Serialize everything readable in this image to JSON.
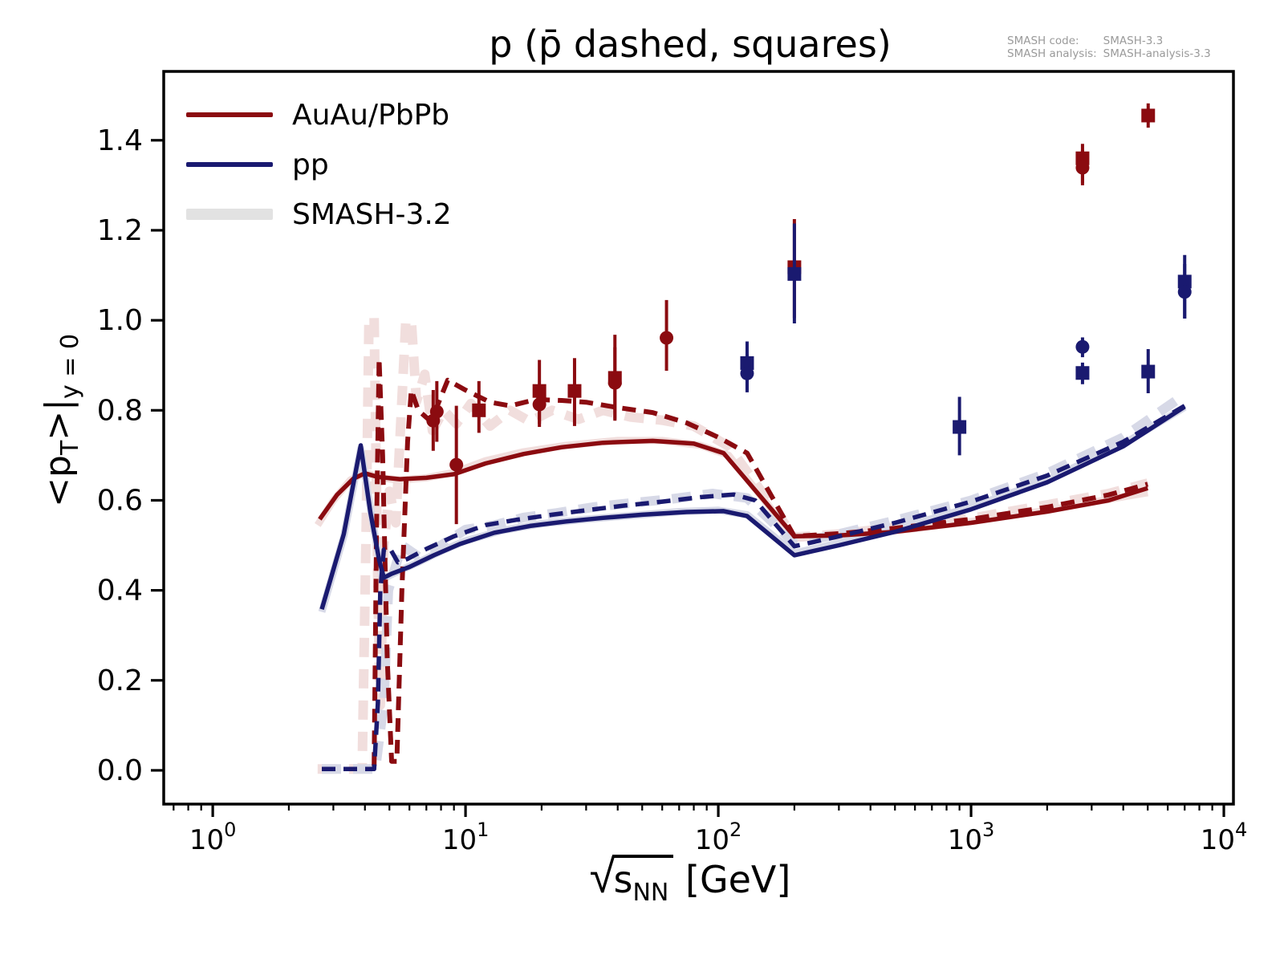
{
  "title": "p (p̄ dashed, squares)",
  "annotation": {
    "code_label": "SMASH code:",
    "code_value": "SMASH-3.3",
    "analysis_label": "SMASH analysis:",
    "analysis_value": "SMASH-analysis-3.3"
  },
  "legend": {
    "items": [
      {
        "label": "AuAu/PbPb",
        "color": "#8b0b10",
        "style": "thin"
      },
      {
        "label": "pp",
        "color": "#1a1a70",
        "style": "thin"
      },
      {
        "label": "SMASH-3.2",
        "color": "#e2e2e2",
        "style": "thick"
      }
    ]
  },
  "ylabel": {
    "pre": "<p",
    "sub1": "T",
    "mid": ">|",
    "sub2": "y = 0"
  },
  "xlabel": {
    "radical": "√",
    "s": "s",
    "sub": "NN",
    "unit": " [GeV]"
  },
  "chart_data": {
    "type": "line",
    "x_scale": "log",
    "x_range_log10": [
      -0.194,
      4.038
    ],
    "y_range": [
      -0.075,
      1.553
    ],
    "x_ticks": [
      {
        "base": "10",
        "exp": "0",
        "value": 1
      },
      {
        "base": "10",
        "exp": "1",
        "value": 10
      },
      {
        "base": "10",
        "exp": "2",
        "value": 100
      },
      {
        "base": "10",
        "exp": "3",
        "value": 1000
      },
      {
        "base": "10",
        "exp": "4",
        "value": 10000
      }
    ],
    "y_ticks": [
      {
        "label": "0.0",
        "value": 0.0
      },
      {
        "label": "0.2",
        "value": 0.2
      },
      {
        "label": "0.4",
        "value": 0.4
      },
      {
        "label": "0.6",
        "value": 0.6
      },
      {
        "label": "0.8",
        "value": 0.8
      },
      {
        "label": "1.0",
        "value": 1.0
      },
      {
        "label": "1.2",
        "value": 1.2
      },
      {
        "label": "1.4",
        "value": 1.4
      }
    ],
    "colors": {
      "auau": "#8b0b10",
      "pp": "#1a1a70",
      "smash32_auau": "#f1dedd",
      "smash32_pp": "#d7d9e7"
    },
    "series": [
      {
        "name": "smash32-auau-p",
        "color": "#f1dedd",
        "width": 9,
        "dash": null,
        "pts": [
          [
            2.6,
            0.545
          ],
          [
            3.0,
            0.6
          ],
          [
            3.5,
            0.645
          ],
          [
            4.0,
            0.662
          ],
          [
            4.6,
            0.65
          ],
          [
            5.5,
            0.645
          ],
          [
            7,
            0.65
          ],
          [
            9,
            0.662
          ],
          [
            12,
            0.688
          ],
          [
            17,
            0.708
          ],
          [
            25,
            0.722
          ],
          [
            40,
            0.733
          ],
          [
            60,
            0.733
          ],
          [
            85,
            0.722
          ],
          [
            110,
            0.7
          ],
          [
            200,
            0.516
          ],
          [
            300,
            0.52
          ],
          [
            500,
            0.532
          ],
          [
            1000,
            0.553
          ],
          [
            2000,
            0.578
          ],
          [
            3500,
            0.602
          ],
          [
            5000,
            0.617
          ]
        ]
      },
      {
        "name": "smash32-auau-pbar",
        "color": "#f1dedd",
        "width": 12,
        "dash": [
          24,
          15
        ],
        "pts": [
          [
            2.6,
            0.003
          ],
          [
            3.9,
            0.003
          ],
          [
            4.05,
            0.55
          ],
          [
            4.15,
            1.005
          ],
          [
            4.35,
            1.005
          ],
          [
            4.5,
            0.4
          ],
          [
            4.6,
            0.145
          ],
          [
            4.75,
            0.5
          ],
          [
            5.0,
            0.62
          ],
          [
            5.3,
            0.55
          ],
          [
            5.8,
            0.995
          ],
          [
            6.1,
            1.0
          ],
          [
            6.4,
            0.82
          ],
          [
            6.9,
            0.88
          ],
          [
            7.4,
            0.755
          ],
          [
            8.2,
            0.8
          ],
          [
            9.2,
            0.77
          ],
          [
            10.5,
            0.815
          ],
          [
            12.5,
            0.765
          ],
          [
            15,
            0.8
          ],
          [
            18,
            0.775
          ],
          [
            22,
            0.8
          ],
          [
            28,
            0.78
          ],
          [
            35,
            0.8
          ],
          [
            45,
            0.785
          ],
          [
            60,
            0.778
          ],
          [
            80,
            0.765
          ],
          [
            110,
            0.72
          ],
          [
            200,
            0.518
          ],
          [
            300,
            0.525
          ],
          [
            500,
            0.54
          ],
          [
            1000,
            0.56
          ],
          [
            2000,
            0.59
          ],
          [
            3500,
            0.615
          ],
          [
            5000,
            0.638
          ]
        ]
      },
      {
        "name": "smash32-pp-p",
        "color": "#d7d9e7",
        "width": 9,
        "dash": null,
        "pts": [
          [
            2.7,
            0.352
          ],
          [
            3.3,
            0.52
          ],
          [
            3.85,
            0.715
          ],
          [
            4.3,
            0.55
          ],
          [
            4.7,
            0.425
          ],
          [
            5.3,
            0.44
          ],
          [
            6.5,
            0.462
          ],
          [
            8,
            0.487
          ],
          [
            10,
            0.51
          ],
          [
            14,
            0.533
          ],
          [
            20,
            0.548
          ],
          [
            30,
            0.558
          ],
          [
            45,
            0.566
          ],
          [
            70,
            0.575
          ],
          [
            100,
            0.578
          ],
          [
            130,
            0.568
          ],
          [
            200,
            0.483
          ],
          [
            300,
            0.505
          ],
          [
            500,
            0.535
          ],
          [
            1000,
            0.585
          ],
          [
            2000,
            0.645
          ],
          [
            4000,
            0.725
          ],
          [
            7000,
            0.807
          ]
        ]
      },
      {
        "name": "smash32-pp-pbar",
        "color": "#d7d9e7",
        "width": 12,
        "dash": [
          24,
          15
        ],
        "pts": [
          [
            2.7,
            0.003
          ],
          [
            4.4,
            0.003
          ],
          [
            4.75,
            0.15
          ],
          [
            4.95,
            0.4
          ],
          [
            5.6,
            0.5
          ],
          [
            6.5,
            0.475
          ],
          [
            8,
            0.5
          ],
          [
            10,
            0.535
          ],
          [
            13,
            0.545
          ],
          [
            17,
            0.562
          ],
          [
            23,
            0.572
          ],
          [
            32,
            0.585
          ],
          [
            45,
            0.594
          ],
          [
            65,
            0.603
          ],
          [
            95,
            0.615
          ],
          [
            130,
            0.605
          ],
          [
            200,
            0.505
          ],
          [
            300,
            0.525
          ],
          [
            500,
            0.555
          ],
          [
            1000,
            0.6
          ],
          [
            2000,
            0.66
          ],
          [
            4000,
            0.74
          ],
          [
            7000,
            0.835
          ]
        ]
      },
      {
        "name": "auau-p",
        "color": "#8b0b10",
        "width": 5.5,
        "dash": null,
        "pts": [
          [
            2.65,
            0.558
          ],
          [
            3.1,
            0.612
          ],
          [
            3.6,
            0.648
          ],
          [
            4.0,
            0.66
          ],
          [
            4.5,
            0.652
          ],
          [
            5.5,
            0.647
          ],
          [
            7,
            0.65
          ],
          [
            9,
            0.658
          ],
          [
            12,
            0.682
          ],
          [
            17,
            0.703
          ],
          [
            24,
            0.718
          ],
          [
            35,
            0.728
          ],
          [
            55,
            0.732
          ],
          [
            80,
            0.726
          ],
          [
            105,
            0.705
          ],
          [
            200,
            0.52
          ],
          [
            300,
            0.522
          ],
          [
            500,
            0.53
          ],
          [
            1000,
            0.55
          ],
          [
            2000,
            0.575
          ],
          [
            3500,
            0.6
          ],
          [
            5000,
            0.627
          ]
        ]
      },
      {
        "name": "auau-pbar",
        "color": "#8b0b10",
        "width": 6,
        "dash": [
          17,
          10
        ],
        "pts": [
          [
            4.35,
            0.01
          ],
          [
            4.45,
            0.55
          ],
          [
            4.55,
            0.915
          ],
          [
            4.7,
            0.7
          ],
          [
            4.9,
            0.25
          ],
          [
            5.1,
            0.02
          ],
          [
            5.35,
            0.02
          ],
          [
            5.6,
            0.4
          ],
          [
            5.9,
            0.73
          ],
          [
            6.1,
            0.845
          ],
          [
            6.5,
            0.8
          ],
          [
            7.3,
            0.775
          ],
          [
            8.5,
            0.867
          ],
          [
            10,
            0.845
          ],
          [
            12.5,
            0.818
          ],
          [
            15,
            0.81
          ],
          [
            19,
            0.824
          ],
          [
            24,
            0.822
          ],
          [
            30,
            0.818
          ],
          [
            40,
            0.806
          ],
          [
            55,
            0.795
          ],
          [
            75,
            0.772
          ],
          [
            100,
            0.74
          ],
          [
            130,
            0.705
          ],
          [
            200,
            0.52
          ],
          [
            300,
            0.526
          ],
          [
            500,
            0.538
          ],
          [
            1000,
            0.558
          ],
          [
            2000,
            0.585
          ],
          [
            3500,
            0.612
          ],
          [
            5000,
            0.636
          ]
        ]
      },
      {
        "name": "pp-p",
        "color": "#1a1a70",
        "width": 5.5,
        "dash": null,
        "pts": [
          [
            2.7,
            0.358
          ],
          [
            3.3,
            0.525
          ],
          [
            3.85,
            0.722
          ],
          [
            4.2,
            0.575
          ],
          [
            4.55,
            0.468
          ],
          [
            4.75,
            0.428
          ],
          [
            5.1,
            0.437
          ],
          [
            6,
            0.452
          ],
          [
            7.5,
            0.478
          ],
          [
            9.5,
            0.503
          ],
          [
            13,
            0.528
          ],
          [
            18,
            0.543
          ],
          [
            25,
            0.553
          ],
          [
            35,
            0.561
          ],
          [
            50,
            0.568
          ],
          [
            75,
            0.574
          ],
          [
            105,
            0.576
          ],
          [
            130,
            0.565
          ],
          [
            200,
            0.478
          ],
          [
            300,
            0.5
          ],
          [
            500,
            0.53
          ],
          [
            1000,
            0.58
          ],
          [
            2000,
            0.64
          ],
          [
            4000,
            0.72
          ],
          [
            7000,
            0.808
          ]
        ]
      },
      {
        "name": "pp-pbar",
        "color": "#1a1a70",
        "width": 5.5,
        "dash": [
          17,
          10
        ],
        "pts": [
          [
            2.7,
            0.003
          ],
          [
            4.35,
            0.003
          ],
          [
            4.5,
            0.15
          ],
          [
            4.6,
            0.4
          ],
          [
            4.75,
            0.49
          ],
          [
            5.0,
            0.495
          ],
          [
            5.4,
            0.462
          ],
          [
            5.9,
            0.47
          ],
          [
            7,
            0.492
          ],
          [
            9,
            0.52
          ],
          [
            12,
            0.545
          ],
          [
            16,
            0.557
          ],
          [
            22,
            0.568
          ],
          [
            30,
            0.578
          ],
          [
            42,
            0.588
          ],
          [
            60,
            0.597
          ],
          [
            85,
            0.607
          ],
          [
            115,
            0.613
          ],
          [
            140,
            0.6
          ],
          [
            200,
            0.498
          ],
          [
            300,
            0.52
          ],
          [
            500,
            0.55
          ],
          [
            1000,
            0.597
          ],
          [
            2000,
            0.655
          ],
          [
            4000,
            0.73
          ],
          [
            7000,
            0.81
          ]
        ]
      }
    ],
    "point_series": [
      {
        "name": "auau-pbar-data",
        "color": "#8b0b10",
        "marker": "square",
        "points": [
          [
            11.3,
            0.8,
            0.75,
            0.865
          ],
          [
            19.6,
            0.843,
            0.763,
            0.912
          ],
          [
            27,
            0.843,
            0.765,
            0.916
          ],
          [
            39,
            0.872,
            0.777,
            0.968
          ],
          [
            200,
            1.118,
            1.005,
            1.225
          ],
          [
            2760,
            1.36,
            1.305,
            1.392
          ],
          [
            5020,
            1.455,
            1.428,
            1.482
          ]
        ]
      },
      {
        "name": "auau-p-data",
        "color": "#8b0b10",
        "marker": "circle",
        "points": [
          [
            7.45,
            0.777,
            0.71,
            0.845
          ],
          [
            7.7,
            0.797,
            0.73,
            0.865
          ],
          [
            9.2,
            0.679,
            0.547,
            0.81
          ],
          [
            19.6,
            0.813,
            0.77,
            0.856
          ],
          [
            39,
            0.861,
            0.78,
            0.94
          ],
          [
            62.4,
            0.961,
            0.888,
            1.045
          ],
          [
            2760,
            1.339,
            1.3,
            1.378
          ]
        ]
      },
      {
        "name": "pp-pbar-data",
        "color": "#1a1a70",
        "marker": "square",
        "points": [
          [
            130,
            0.905,
            0.843,
            0.953
          ],
          [
            200,
            1.103,
            0.993,
            1.215
          ],
          [
            900,
            0.763,
            0.7,
            0.83
          ],
          [
            2760,
            0.883,
            0.858,
            0.906
          ],
          [
            5020,
            0.886,
            0.838,
            0.936
          ],
          [
            7000,
            1.086,
            1.004,
            1.145
          ]
        ]
      },
      {
        "name": "pp-p-data",
        "color": "#1a1a70",
        "marker": "circle",
        "points": [
          [
            130,
            0.882,
            0.84,
            0.925
          ],
          [
            2760,
            0.941,
            0.918,
            0.962
          ],
          [
            7000,
            1.063,
            1.004,
            1.125
          ]
        ]
      }
    ]
  }
}
